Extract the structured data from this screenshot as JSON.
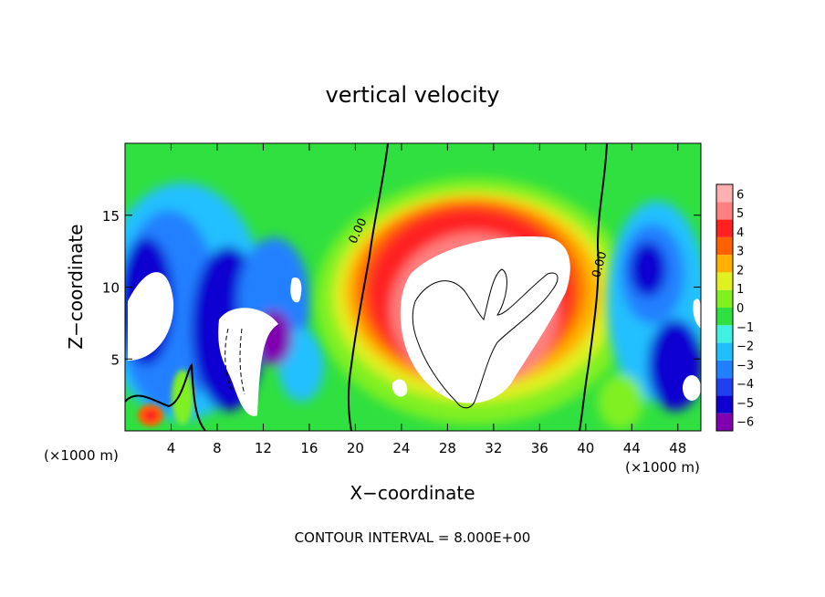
{
  "chart_data": {
    "type": "heatmap",
    "title": "vertical velocity",
    "xlabel": "X−coordinate",
    "ylabel": "Z−coordinate",
    "x_unit_left": "(×1000 m)",
    "x_unit_right": "(×1000 m)",
    "footer": "CONTOUR INTERVAL = 8.000E+00",
    "xlim": [
      0,
      50
    ],
    "ylim": [
      0,
      20
    ],
    "x_ticks": [
      4,
      8,
      12,
      16,
      20,
      24,
      28,
      32,
      36,
      40,
      44,
      48
    ],
    "y_ticks": [
      5,
      10,
      15
    ],
    "colorbar": {
      "levels": [
        -6,
        -5,
        -4,
        -3,
        -2,
        -1,
        0,
        1,
        2,
        3,
        4,
        5,
        6
      ],
      "tick_labels": [
        "−6",
        "−5",
        "−4",
        "−3",
        "−2",
        "−1",
        "0",
        "1",
        "2",
        "3",
        "4",
        "5",
        "6"
      ],
      "colors": [
        "#8000b0",
        "#1000d0",
        "#2040f0",
        "#2080ff",
        "#20c0ff",
        "#40f0e0",
        "#30e040",
        "#80f020",
        "#e0f020",
        "#ffb000",
        "#ff6000",
        "#ff2020",
        "#ff8080",
        "#ffb0b0"
      ]
    },
    "contour_labels": [
      {
        "text": "0.00",
        "x": 20.5,
        "y": 13.8,
        "angle": -65
      },
      {
        "text": "0.00",
        "x": 41.5,
        "y": 11.5,
        "angle": -75
      }
    ],
    "features": [
      {
        "kind": "updraft_core",
        "x": 30.5,
        "y": 10.0,
        "rx": 9.0,
        "ry": 6.5,
        "value": 8
      },
      {
        "kind": "updraft_ring",
        "x": 30.5,
        "y": 9.5,
        "rx": 11.5,
        "ry": 8.5,
        "value": 5
      },
      {
        "kind": "downdraft",
        "x": 5.0,
        "y": 10.0,
        "rx": 4.5,
        "ry": 7.0,
        "value": -5
      },
      {
        "kind": "downdraft",
        "x": 11.0,
        "y": 7.5,
        "rx": 3.0,
        "ry": 5.0,
        "value": -5
      },
      {
        "kind": "downdraft",
        "x": 46.0,
        "y": 10.0,
        "rx": 3.5,
        "ry": 4.0,
        "value": -4
      }
    ]
  }
}
